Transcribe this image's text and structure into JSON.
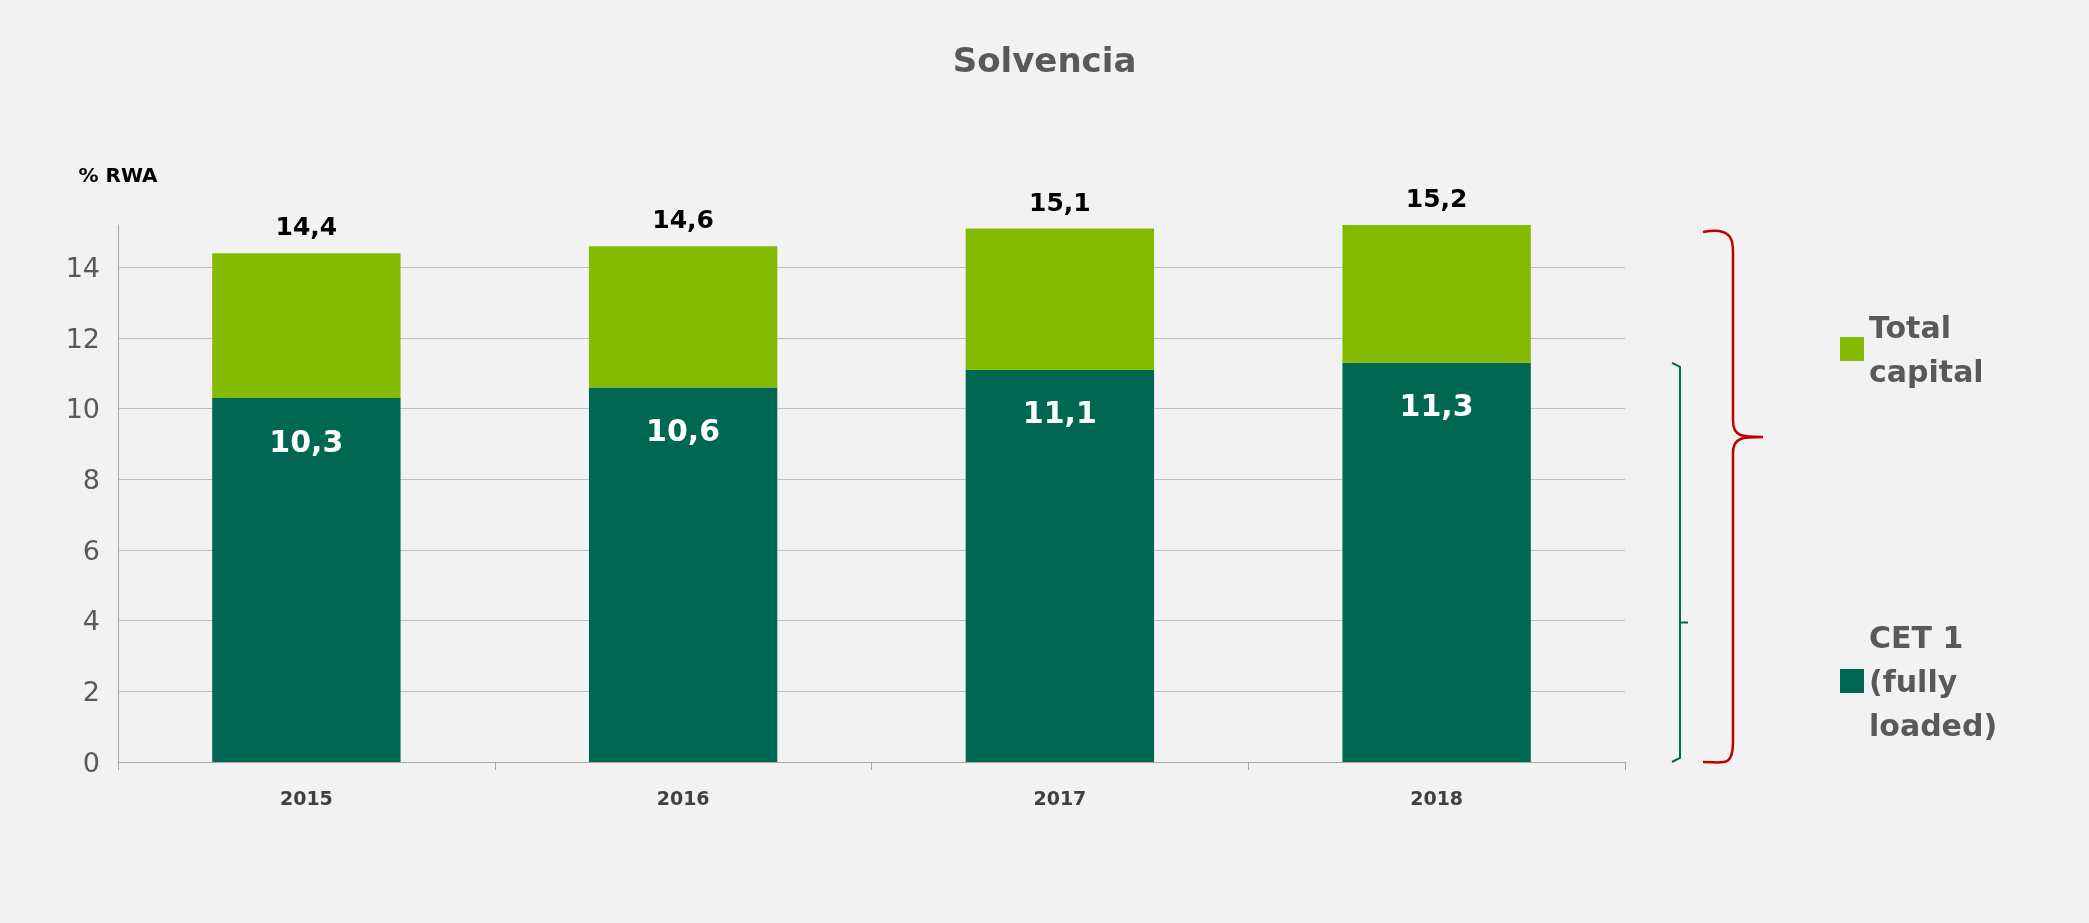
{
  "chart_data": {
    "type": "bar",
    "title": "Solvencia",
    "ylabel": "% RWA",
    "categories": [
      "2015",
      "2016",
      "2017",
      "2018"
    ],
    "stacked": true,
    "series": [
      {
        "name": "CET 1 (fully loaded)",
        "color": "#006752",
        "values": [
          10.3,
          10.6,
          11.1,
          11.3
        ],
        "value_labels": [
          "10,3",
          "10,6",
          "11,1",
          "11,3"
        ]
      },
      {
        "name": "Total capital",
        "color": "#84bb00",
        "values": [
          4.1,
          4.0,
          4.0,
          3.9
        ]
      }
    ],
    "totals": [
      "14,4",
      "14,6",
      "15,1",
      "15,2"
    ],
    "ylim": [
      0,
      15.2
    ],
    "yticks": [
      0,
      2,
      4,
      6,
      8,
      10,
      12,
      14
    ],
    "grid": "y",
    "legend": "right"
  }
}
